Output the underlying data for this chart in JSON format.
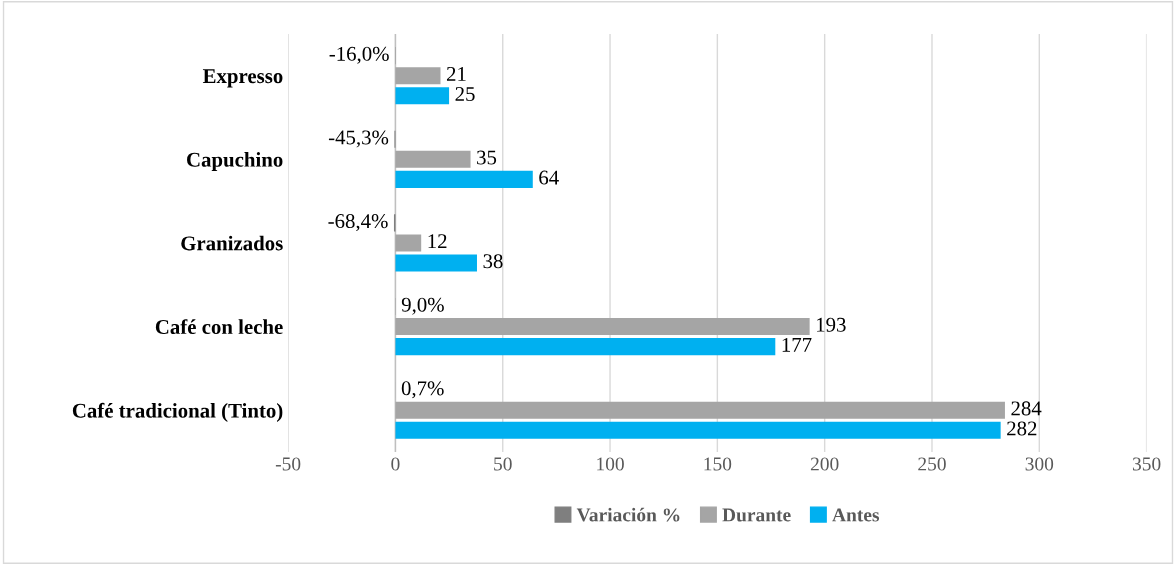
{
  "chart_data": {
    "type": "bar",
    "orientation": "horizontal",
    "categories": [
      "Expresso",
      "Capuchino",
      "Granizados",
      "Café con leche",
      "Café tradicional (Tinto)"
    ],
    "series": [
      {
        "name": "Variación %",
        "color": "#7f7f7f",
        "values": [
          -0.16,
          -0.453,
          -0.684,
          0.09,
          0.007
        ],
        "value_labels": [
          "-16,0%",
          "-45,3%",
          "-68,4%",
          "9,0%",
          "0,7%"
        ]
      },
      {
        "name": "Durante",
        "color": "#a5a5a5",
        "values": [
          21,
          35,
          12,
          193,
          284
        ],
        "value_labels": [
          "21",
          "35",
          "12",
          "193",
          "284"
        ]
      },
      {
        "name": "Antes",
        "color": "#00b0f0",
        "values": [
          25,
          64,
          38,
          177,
          282
        ],
        "value_labels": [
          "25",
          "64",
          "38",
          "177",
          "282"
        ]
      }
    ],
    "xlim": [
      -50,
      350
    ],
    "xticks": [
      -50,
      0,
      50,
      100,
      150,
      200,
      250,
      300,
      350
    ],
    "grid": "x",
    "legend": "bottom"
  }
}
